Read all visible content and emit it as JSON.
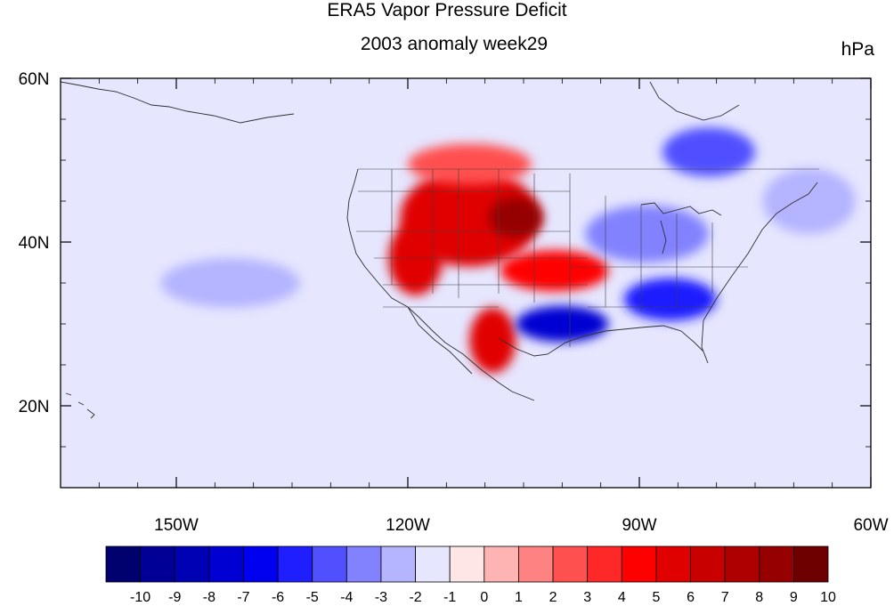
{
  "title": "ERA5 Vapor Pressure Deficit",
  "subtitle": "2003 anomaly week29",
  "units": "hPa",
  "map": {
    "projection": "cylindrical-equidistant",
    "lon_range": [
      -165,
      -60
    ],
    "lat_range": [
      10,
      60
    ],
    "x_ticks": [
      {
        "lon": -150,
        "label": "150W"
      },
      {
        "lon": -120,
        "label": "120W"
      },
      {
        "lon": -90,
        "label": "90W"
      },
      {
        "lon": -60,
        "label": "60W"
      }
    ],
    "y_ticks": [
      {
        "lat": 60,
        "label": "60N"
      },
      {
        "lat": 40,
        "label": "40N"
      },
      {
        "lat": 20,
        "label": "20N"
      }
    ],
    "features": [
      {
        "name": "western-us-dry-anomaly",
        "lon": -112,
        "lat": 43,
        "rx_deg": 9,
        "ry_deg": 6,
        "level": 6
      },
      {
        "name": "wyoming-core",
        "lon": -106,
        "lat": 43,
        "rx_deg": 3.5,
        "ry_deg": 2.5,
        "level": 9
      },
      {
        "name": "california-nevada",
        "lon": -119,
        "lat": 38,
        "rx_deg": 3.5,
        "ry_deg": 4.5,
        "level": 6
      },
      {
        "name": "southern-plains",
        "lon": -101,
        "lat": 36.5,
        "rx_deg": 7,
        "ry_deg": 2.5,
        "level": 5
      },
      {
        "name": "sonora-mexico",
        "lon": -109,
        "lat": 28,
        "rx_deg": 3,
        "ry_deg": 4,
        "level": 6
      },
      {
        "name": "canada-west",
        "lon": -112,
        "lat": 49.5,
        "rx_deg": 8,
        "ry_deg": 2.5,
        "level": 3
      },
      {
        "name": "texas-moist-anomaly",
        "lon": -100,
        "lat": 30,
        "rx_deg": 6,
        "ry_deg": 2.2,
        "level": -7
      },
      {
        "name": "southeast-us-moist",
        "lon": -86,
        "lat": 33,
        "rx_deg": 6,
        "ry_deg": 2.6,
        "level": -5
      },
      {
        "name": "great-lakes-moist",
        "lon": -89,
        "lat": 41,
        "rx_deg": 8,
        "ry_deg": 3.5,
        "level": -3
      },
      {
        "name": "quebec-moist",
        "lon": -81,
        "lat": 51,
        "rx_deg": 6,
        "ry_deg": 3,
        "level": -4
      },
      {
        "name": "north-pacific-moist",
        "lon": -143,
        "lat": 35,
        "rx_deg": 9,
        "ry_deg": 3,
        "level": -2
      },
      {
        "name": "atlantic-moist",
        "lon": -68,
        "lat": 45,
        "rx_deg": 6,
        "ry_deg": 4,
        "level": -2
      }
    ]
  },
  "colorbar": {
    "labels": [
      "-10",
      "-9",
      "-8",
      "-7",
      "-6",
      "-5",
      "-4",
      "-3",
      "-2",
      "-1",
      "0",
      "1",
      "2",
      "3",
      "4",
      "5",
      "6",
      "7",
      "8",
      "9",
      "10"
    ],
    "colors": [
      "#00006e",
      "#000096",
      "#0000b4",
      "#0000d2",
      "#0000f0",
      "#1e1eff",
      "#5050ff",
      "#8282ff",
      "#b4b4ff",
      "#e6e6ff",
      "#ffe6e6",
      "#ffb4b4",
      "#ff8282",
      "#ff5050",
      "#ff2828",
      "#ff0000",
      "#e10000",
      "#c80000",
      "#af0000",
      "#960000",
      "#6e0000"
    ]
  }
}
